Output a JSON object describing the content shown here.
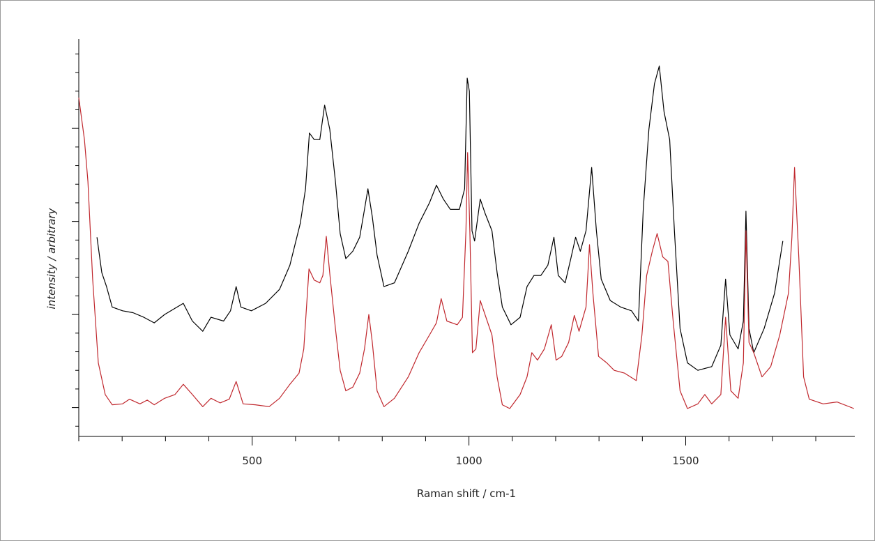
{
  "chart_data": {
    "type": "line",
    "x_label": "Raman shift / cm-1",
    "y_label": "intensity / arbitrary",
    "xlim": [
      100,
      1890
    ],
    "xticks": [
      500,
      1000,
      1500
    ],
    "xminor_ticks": [
      100,
      200,
      300,
      400,
      600,
      700,
      800,
      900,
      1100,
      1200,
      1300,
      1400,
      1600,
      1700,
      1800
    ],
    "ylim": [
      0.69,
      4.96
    ],
    "yticks": [
      0.8,
      1,
      1.2,
      1.4,
      1.6,
      1.8,
      2,
      2.2,
      2.4,
      2.6,
      2.8,
      3,
      3.2,
      3.4,
      3.6,
      3.8,
      4,
      4.2,
      4.4,
      4.6,
      4.8
    ],
    "series": [
      {
        "color": "#000000",
        "x": [
          142,
          153,
          164,
          177,
          201,
          225,
          250,
          274,
          298,
          341,
          362,
          386,
          405,
          434,
          450,
          463,
          474,
          498,
          531,
          563,
          587,
          611,
          623,
          632,
          643,
          656,
          667,
          679,
          692,
          703,
          716,
          732,
          748,
          759,
          767,
          777,
          788,
          804,
          828,
          860,
          885,
          909,
          925,
          941,
          957,
          978,
          990,
          996,
          1001,
          1007,
          1013,
          1026,
          1037,
          1053,
          1065,
          1077,
          1097,
          1118,
          1134,
          1150,
          1166,
          1182,
          1196,
          1206,
          1222,
          1235,
          1246,
          1257,
          1270,
          1283,
          1294,
          1305,
          1326,
          1350,
          1375,
          1391,
          1402,
          1415,
          1428,
          1439,
          1450,
          1463,
          1474,
          1487,
          1504,
          1528,
          1560,
          1581,
          1592,
          1602,
          1621,
          1633,
          1639,
          1646,
          1657,
          1681,
          1705,
          1724
        ],
        "values": [
          2.83,
          2.45,
          2.3,
          2.08,
          2.04,
          2.02,
          1.97,
          1.91,
          2.0,
          2.12,
          1.93,
          1.82,
          1.97,
          1.93,
          2.04,
          2.3,
          2.08,
          2.04,
          2.12,
          2.27,
          2.53,
          2.98,
          3.35,
          3.95,
          3.88,
          3.88,
          4.25,
          3.99,
          3.43,
          2.87,
          2.6,
          2.68,
          2.83,
          3.13,
          3.35,
          3.05,
          2.64,
          2.3,
          2.34,
          2.68,
          2.98,
          3.2,
          3.39,
          3.24,
          3.13,
          3.13,
          3.35,
          4.54,
          4.4,
          2.9,
          2.79,
          3.24,
          3.09,
          2.9,
          2.45,
          2.08,
          1.89,
          1.97,
          2.3,
          2.42,
          2.42,
          2.53,
          2.83,
          2.42,
          2.34,
          2.6,
          2.83,
          2.68,
          2.9,
          3.58,
          2.9,
          2.38,
          2.15,
          2.08,
          2.04,
          1.93,
          3.13,
          3.99,
          4.48,
          4.67,
          4.18,
          3.88,
          2.9,
          1.85,
          1.48,
          1.4,
          1.44,
          1.67,
          2.38,
          1.78,
          1.63,
          1.93,
          3.11,
          1.85,
          1.59,
          1.85,
          2.23,
          2.79
        ]
      },
      {
        "color": "#c0272d",
        "x": [
          100,
          113,
          121,
          132,
          145,
          161,
          177,
          201,
          217,
          241,
          258,
          274,
          298,
          322,
          341,
          362,
          386,
          405,
          426,
          447,
          463,
          479,
          507,
          539,
          563,
          587,
          608,
          619,
          631,
          643,
          656,
          663,
          671,
          679,
          692,
          703,
          716,
          732,
          748,
          759,
          769,
          777,
          788,
          804,
          828,
          860,
          885,
          909,
          925,
          936,
          949,
          973,
          985,
          993,
          997,
          1002,
          1008,
          1016,
          1026,
          1037,
          1053,
          1065,
          1077,
          1094,
          1118,
          1134,
          1145,
          1158,
          1174,
          1190,
          1201,
          1214,
          1230,
          1243,
          1254,
          1270,
          1278,
          1286,
          1299,
          1318,
          1335,
          1359,
          1386,
          1399,
          1410,
          1423,
          1434,
          1447,
          1459,
          1471,
          1487,
          1504,
          1528,
          1544,
          1560,
          1581,
          1592,
          1604,
          1621,
          1633,
          1639,
          1646,
          1657,
          1676,
          1696,
          1717,
          1737,
          1745,
          1751,
          1761,
          1772,
          1785,
          1817,
          1849,
          1888
        ],
        "values": [
          4.33,
          3.88,
          3.43,
          2.38,
          1.48,
          1.14,
          1.03,
          1.04,
          1.09,
          1.04,
          1.08,
          1.03,
          1.1,
          1.14,
          1.25,
          1.14,
          1.01,
          1.1,
          1.05,
          1.09,
          1.28,
          1.04,
          1.03,
          1.01,
          1.1,
          1.25,
          1.37,
          1.63,
          2.49,
          2.37,
          2.34,
          2.42,
          2.84,
          2.44,
          1.85,
          1.4,
          1.18,
          1.22,
          1.37,
          1.63,
          2.0,
          1.7,
          1.18,
          1.01,
          1.1,
          1.33,
          1.59,
          1.78,
          1.91,
          2.17,
          1.93,
          1.89,
          1.97,
          2.9,
          3.74,
          2.9,
          1.59,
          1.63,
          2.15,
          2.0,
          1.78,
          1.33,
          1.03,
          0.99,
          1.14,
          1.33,
          1.59,
          1.51,
          1.63,
          1.89,
          1.51,
          1.55,
          1.7,
          1.99,
          1.82,
          2.08,
          2.75,
          2.23,
          1.55,
          1.48,
          1.4,
          1.37,
          1.29,
          1.78,
          2.42,
          2.68,
          2.87,
          2.62,
          2.57,
          1.93,
          1.18,
          0.99,
          1.04,
          1.14,
          1.04,
          1.14,
          1.97,
          1.18,
          1.1,
          1.48,
          2.9,
          1.7,
          1.59,
          1.33,
          1.44,
          1.78,
          2.23,
          2.83,
          3.58,
          2.6,
          1.33,
          1.09,
          1.04,
          1.06,
          0.99
        ]
      }
    ]
  }
}
